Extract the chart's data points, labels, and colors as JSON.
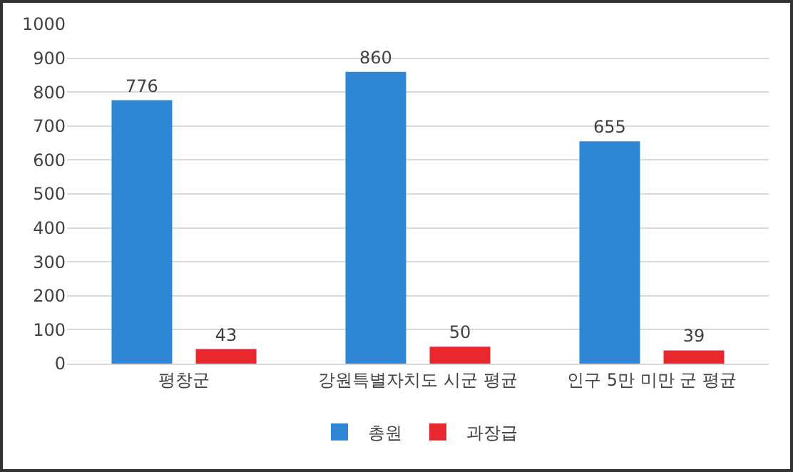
{
  "chart_data": {
    "type": "bar",
    "categories": [
      "평창군",
      "강원특별자치도 시군 평균",
      "인구 5만 미만 군 평균"
    ],
    "series": [
      {
        "name": "총원",
        "color": "#2f86d4",
        "values": [
          776,
          860,
          655
        ]
      },
      {
        "name": "과장급",
        "color": "#e8282e",
        "values": [
          43,
          50,
          39
        ]
      }
    ],
    "ylim": [
      0,
      1000
    ],
    "yticks": [
      0,
      100,
      200,
      300,
      400,
      500,
      600,
      700,
      800,
      900,
      1000
    ],
    "grid": "y",
    "legend": "bottom",
    "data_labels": true
  }
}
